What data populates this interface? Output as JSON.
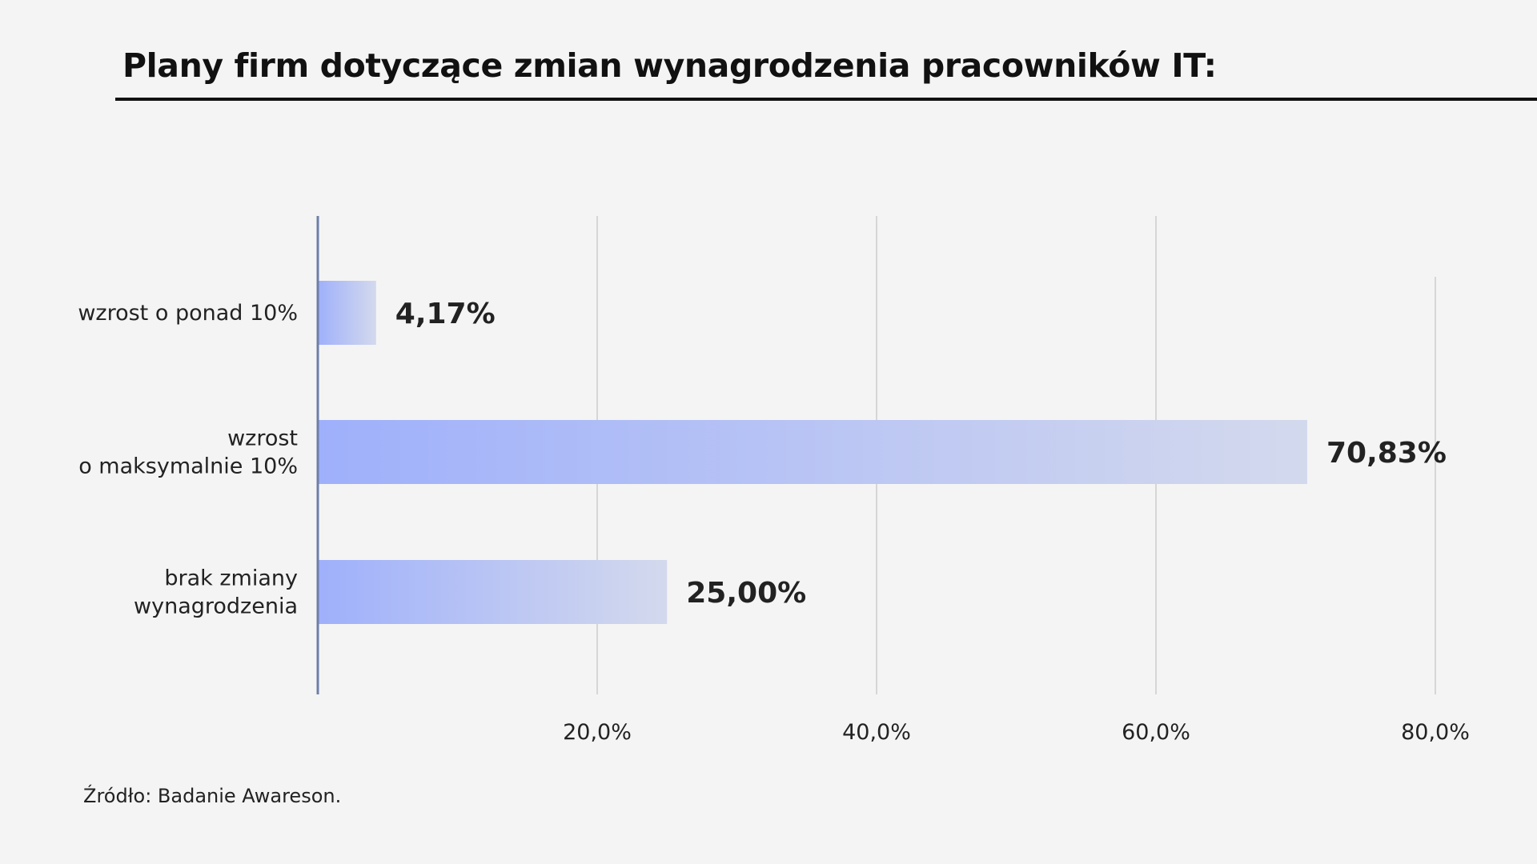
{
  "title": "Plany firm dotyczące zmian wynagrodzenia pracowników IT:",
  "source": "Źródło: Badanie Awareson.",
  "colors": {
    "bar_start": "#9fb0fb",
    "bar_end": "#d3d9ed",
    "axis": "#6e7ea8",
    "grid": "#d6d6d6",
    "text": "#222222",
    "background": "#f4f4f4"
  },
  "chart_data": {
    "type": "bar",
    "orientation": "horizontal",
    "categories": [
      [
        "wzrost o ponad 10%"
      ],
      [
        "wzrost",
        "o maksymalnie 10%"
      ],
      [
        "brak zmiany",
        "wynagrodzenia"
      ]
    ],
    "values": [
      4.17,
      70.83,
      25.0
    ],
    "value_labels": [
      "4,17%",
      "70,83%",
      "25,00%"
    ],
    "x_ticks": [
      20,
      40,
      60,
      80
    ],
    "x_tick_labels": [
      "20,0%",
      "40,0%",
      "60,0%",
      "80,0%"
    ],
    "xlim": [
      0,
      80
    ],
    "grid": "vertical",
    "legend": "none",
    "xlabel": "",
    "ylabel": ""
  }
}
